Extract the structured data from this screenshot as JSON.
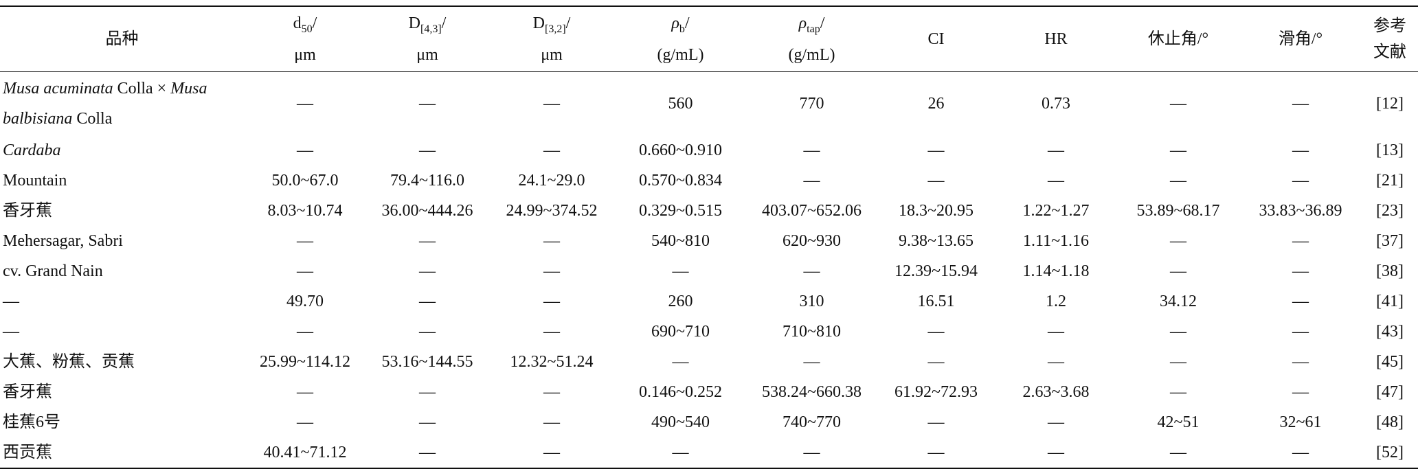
{
  "table": {
    "header": [
      {
        "text": "品种"
      },
      {
        "symbol": "d",
        "sub": "50",
        "slash": "/",
        "unit": "μm"
      },
      {
        "symbol": "D",
        "sub": "[4,3]",
        "slash": "/",
        "unit": "μm"
      },
      {
        "symbol": "D",
        "sub": "[3,2]",
        "slash": "/",
        "unit": "μm"
      },
      {
        "symbol": "ρ",
        "italic": true,
        "sub": "b",
        "slash": "/",
        "unit": "(g/mL)"
      },
      {
        "symbol": "ρ",
        "italic": true,
        "sub": "tap",
        "slash": "/",
        "unit": "(g/mL)"
      },
      {
        "text": "CI"
      },
      {
        "text": "HR"
      },
      {
        "text": "休止角/°"
      },
      {
        "text": "滑角/°"
      },
      {
        "lines": [
          "参考",
          "文献"
        ]
      }
    ],
    "rows": [
      [
        [
          {
            "text": "Musa acuminata",
            "italic": true
          },
          {
            "text": " Colla × "
          },
          {
            "text": "Musa balbisiana",
            "italic": true
          },
          {
            "text": " Colla"
          }
        ],
        "—",
        "—",
        "—",
        "560",
        "770",
        "26",
        "0.73",
        "—",
        "—",
        "[12]"
      ],
      [
        [
          {
            "text": "Cardaba",
            "italic": true
          }
        ],
        "—",
        "—",
        "—",
        "0.660~0.910",
        "—",
        "—",
        "—",
        "—",
        "—",
        "[13]"
      ],
      [
        "Mountain",
        "50.0~67.0",
        "79.4~116.0",
        "24.1~29.0",
        "0.570~0.834",
        "—",
        "—",
        "—",
        "—",
        "—",
        "[21]"
      ],
      [
        "香牙蕉",
        "8.03~10.74",
        "36.00~444.26",
        "24.99~374.52",
        "0.329~0.515",
        "403.07~652.06",
        "18.3~20.95",
        "1.22~1.27",
        "53.89~68.17",
        "33.83~36.89",
        "[23]"
      ],
      [
        "Mehersagar, Sabri",
        "—",
        "—",
        "—",
        "540~810",
        "620~930",
        "9.38~13.65",
        "1.11~1.16",
        "—",
        "—",
        "[37]"
      ],
      [
        "cv. Grand Nain",
        "—",
        "—",
        "—",
        "—",
        "—",
        "12.39~15.94",
        "1.14~1.18",
        "—",
        "—",
        "[38]"
      ],
      [
        "—",
        "49.70",
        "—",
        "—",
        "260",
        "310",
        "16.51",
        "1.2",
        "34.12",
        "—",
        "[41]"
      ],
      [
        "—",
        "—",
        "—",
        "—",
        "690~710",
        "710~810",
        "—",
        "—",
        "—",
        "—",
        "[43]"
      ],
      [
        "大蕉、粉蕉、贡蕉",
        "25.99~114.12",
        "53.16~144.55",
        "12.32~51.24",
        "—",
        "—",
        "—",
        "—",
        "—",
        "—",
        "[45]"
      ],
      [
        "香牙蕉",
        "—",
        "—",
        "—",
        "0.146~0.252",
        "538.24~660.38",
        "61.92~72.93",
        "2.63~3.68",
        "—",
        "—",
        "[47]"
      ],
      [
        "桂蕉6号",
        "—",
        "—",
        "—",
        "490~540",
        "740~770",
        "—",
        "—",
        "42~51",
        "32~61",
        "[48]"
      ],
      [
        "西贡蕉",
        "40.41~71.12",
        "—",
        "—",
        "—",
        "—",
        "—",
        "—",
        "—",
        "—",
        "[52]"
      ]
    ]
  }
}
